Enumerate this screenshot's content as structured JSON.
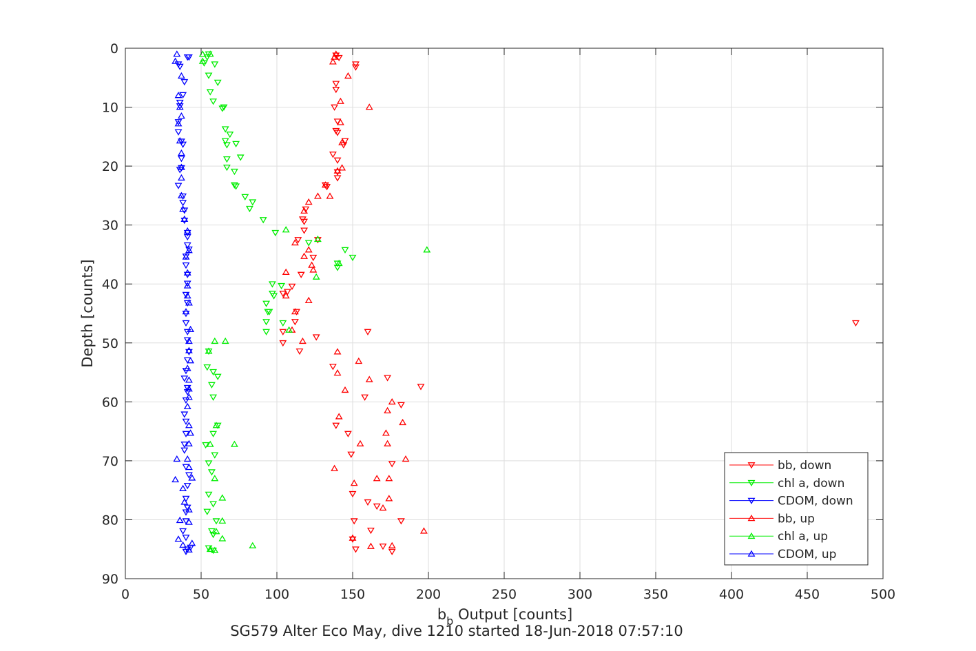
{
  "chart_data": {
    "type": "scatter",
    "title": "",
    "xlabel": {
      "base": "b",
      "subscript": "b",
      "suffix": " Output [counts]"
    },
    "ylabel": "Depth [counts]",
    "caption": "SG579 Alter Eco May, dive 1210 started 18-Jun-2018 07:57:10",
    "xlim": [
      0,
      500
    ],
    "ylim": [
      0,
      90
    ],
    "y_reversed": true,
    "grid": true,
    "xticks": [
      "0",
      "50",
      "100",
      "150",
      "200",
      "250",
      "300",
      "350",
      "400",
      "450",
      "500"
    ],
    "yticks": [
      "0",
      "10",
      "20",
      "30",
      "40",
      "50",
      "60",
      "70",
      "80",
      "90"
    ],
    "legend_position": "bottom-right",
    "series": [
      {
        "name": "bb, down",
        "color": "#ff0000",
        "marker": "triangle-down",
        "points": [
          [
            139,
            1.2
          ],
          [
            141,
            1.6
          ],
          [
            152,
            2.7
          ],
          [
            152,
            3.2
          ],
          [
            139,
            6.0
          ],
          [
            139,
            7.0
          ],
          [
            138,
            10.0
          ],
          [
            140,
            12.4
          ],
          [
            139,
            14.0
          ],
          [
            140,
            14.3
          ],
          [
            145,
            15.7
          ],
          [
            144,
            16.4
          ],
          [
            137,
            18.0
          ],
          [
            140,
            19.0
          ],
          [
            140,
            21.0
          ],
          [
            140,
            22.0
          ],
          [
            132,
            23.2
          ],
          [
            133,
            23.5
          ],
          [
            119,
            27.3
          ],
          [
            117,
            29.0
          ],
          [
            118,
            29.4
          ],
          [
            118,
            30.9
          ],
          [
            114,
            32.5
          ],
          [
            127,
            32.5
          ],
          [
            124,
            35.5
          ],
          [
            116,
            38.4
          ],
          [
            110,
            40.4
          ],
          [
            107,
            41.3
          ],
          [
            104,
            41.6
          ],
          [
            113,
            44.7
          ],
          [
            112,
            46.4
          ],
          [
            104,
            48.1
          ],
          [
            160,
            48.1
          ],
          [
            126,
            49.0
          ],
          [
            104,
            50.0
          ],
          [
            115,
            51.4
          ],
          [
            137,
            54.0
          ],
          [
            173,
            55.9
          ],
          [
            195,
            57.4
          ],
          [
            182,
            60.5
          ],
          [
            158,
            59.2
          ],
          [
            139,
            64.0
          ],
          [
            147,
            65.4
          ],
          [
            149,
            68.9
          ],
          [
            176,
            70.5
          ],
          [
            150,
            75.6
          ],
          [
            160,
            77.0
          ],
          [
            166,
            77.7
          ],
          [
            182,
            80.2
          ],
          [
            151,
            80.2
          ],
          [
            162,
            81.8
          ],
          [
            150,
            83.3
          ],
          [
            152,
            85.0
          ],
          [
            170,
            84.5
          ],
          [
            176,
            85.4
          ],
          [
            482,
            46.6
          ]
        ]
      },
      {
        "name": "chl a, down",
        "color": "#00ee00",
        "marker": "triangle-down",
        "points": [
          [
            55,
            1.0
          ],
          [
            54,
            1.5
          ],
          [
            52,
            2.5
          ],
          [
            59,
            2.7
          ],
          [
            55,
            4.6
          ],
          [
            61,
            5.8
          ],
          [
            56,
            7.4
          ],
          [
            58,
            9.0
          ],
          [
            64,
            10.2
          ],
          [
            65,
            10.0
          ],
          [
            66,
            13.7
          ],
          [
            69,
            14.6
          ],
          [
            66,
            15.7
          ],
          [
            67,
            16.4
          ],
          [
            73,
            16.2
          ],
          [
            76,
            18.5
          ],
          [
            67,
            18.8
          ],
          [
            67,
            20.2
          ],
          [
            72,
            20.9
          ],
          [
            72,
            23.2
          ],
          [
            73,
            23.4
          ],
          [
            79,
            25.2
          ],
          [
            82,
            27.2
          ],
          [
            84,
            26.1
          ],
          [
            91,
            29.1
          ],
          [
            99,
            31.3
          ],
          [
            121,
            33.0
          ],
          [
            145,
            34.2
          ],
          [
            150,
            35.5
          ],
          [
            140,
            36.5
          ],
          [
            140,
            37.2
          ],
          [
            97,
            40.0
          ],
          [
            103,
            40.3
          ],
          [
            97,
            41.6
          ],
          [
            98,
            42.0
          ],
          [
            93,
            43.3
          ],
          [
            95,
            44.7
          ],
          [
            94,
            44.7
          ],
          [
            93,
            46.4
          ],
          [
            104,
            46.6
          ],
          [
            93,
            48.1
          ],
          [
            55,
            51.4
          ],
          [
            54,
            54.1
          ],
          [
            58,
            54.9
          ],
          [
            61,
            55.7
          ],
          [
            57,
            57.1
          ],
          [
            58,
            59.2
          ],
          [
            61,
            64.0
          ],
          [
            58,
            65.4
          ],
          [
            53,
            67.3
          ],
          [
            59,
            69.0
          ],
          [
            55,
            70.4
          ],
          [
            57,
            71.9
          ],
          [
            55,
            75.7
          ],
          [
            58,
            77.3
          ],
          [
            54,
            78.6
          ],
          [
            60,
            80.2
          ],
          [
            57,
            81.9
          ],
          [
            58,
            82.5
          ],
          [
            58,
            85.2
          ],
          [
            55,
            84.8
          ]
        ]
      },
      {
        "name": "CDOM, down",
        "color": "#0000ff",
        "marker": "triangle-down",
        "points": [
          [
            42,
            1.5
          ],
          [
            41,
            1.5
          ],
          [
            35,
            2.7
          ],
          [
            36,
            3.1
          ],
          [
            39,
            5.7
          ],
          [
            38,
            7.9
          ],
          [
            36,
            9.2
          ],
          [
            36,
            9.8
          ],
          [
            35,
            12.5
          ],
          [
            35,
            14.2
          ],
          [
            37,
            15.8
          ],
          [
            38,
            16.3
          ],
          [
            37,
            18.7
          ],
          [
            36,
            20.6
          ],
          [
            37,
            20.3
          ],
          [
            35,
            23.3
          ],
          [
            38,
            25.1
          ],
          [
            38,
            26.2
          ],
          [
            39,
            27.5
          ],
          [
            39,
            29.2
          ],
          [
            41,
            31.3
          ],
          [
            41,
            32.0
          ],
          [
            41,
            33.4
          ],
          [
            42,
            34.1
          ],
          [
            40,
            35.3
          ],
          [
            40,
            36.8
          ],
          [
            41,
            38.4
          ],
          [
            41,
            39.9
          ],
          [
            40,
            41.8
          ],
          [
            41,
            43.2
          ],
          [
            40,
            45.0
          ],
          [
            40,
            46.6
          ],
          [
            41,
            48.1
          ],
          [
            41,
            49.5
          ],
          [
            42,
            51.5
          ],
          [
            41,
            52.9
          ],
          [
            40,
            54.7
          ],
          [
            39,
            56.0
          ],
          [
            41,
            57.6
          ],
          [
            41,
            58.3
          ],
          [
            40,
            59.7
          ],
          [
            39,
            62.1
          ],
          [
            40,
            63.3
          ],
          [
            40,
            65.4
          ],
          [
            39,
            67.2
          ],
          [
            39,
            68.2
          ],
          [
            40,
            71.0
          ],
          [
            42,
            72.4
          ],
          [
            41,
            74.2
          ],
          [
            40,
            76.4
          ],
          [
            41,
            77.9
          ],
          [
            40,
            78.7
          ],
          [
            40,
            80.2
          ],
          [
            38,
            81.9
          ],
          [
            40,
            83.0
          ],
          [
            43,
            84.7
          ],
          [
            40,
            85.4
          ],
          [
            41,
            85.0
          ]
        ]
      },
      {
        "name": "bb, up",
        "color": "#ff0000",
        "marker": "triangle-up",
        "points": [
          [
            139,
            1.0
          ],
          [
            138,
            1.5
          ],
          [
            137,
            2.3
          ],
          [
            147,
            4.7
          ],
          [
            142,
            9.0
          ],
          [
            161,
            10.0
          ],
          [
            142,
            12.6
          ],
          [
            143,
            16.0
          ],
          [
            143,
            20.3
          ],
          [
            140,
            20.8
          ],
          [
            132,
            23.2
          ],
          [
            135,
            25.1
          ],
          [
            127,
            25.1
          ],
          [
            121,
            26.1
          ],
          [
            118,
            27.6
          ],
          [
            112,
            33.0
          ],
          [
            121,
            34.2
          ],
          [
            118,
            35.3
          ],
          [
            123,
            36.8
          ],
          [
            124,
            37.6
          ],
          [
            106,
            38.0
          ],
          [
            106,
            42.0
          ],
          [
            121,
            42.8
          ],
          [
            112,
            44.7
          ],
          [
            110,
            47.8
          ],
          [
            117,
            49.7
          ],
          [
            140,
            51.5
          ],
          [
            154,
            53.1
          ],
          [
            140,
            55.1
          ],
          [
            161,
            56.2
          ],
          [
            145,
            58.0
          ],
          [
            176,
            60.0
          ],
          [
            173,
            61.5
          ],
          [
            141,
            62.5
          ],
          [
            183,
            63.5
          ],
          [
            172,
            65.3
          ],
          [
            155,
            67.1
          ],
          [
            173,
            67.1
          ],
          [
            185,
            69.7
          ],
          [
            138,
            71.3
          ],
          [
            166,
            73.0
          ],
          [
            174,
            73.0
          ],
          [
            151,
            73.8
          ],
          [
            174,
            76.4
          ],
          [
            170,
            78.0
          ],
          [
            150,
            83.1
          ],
          [
            197,
            81.9
          ],
          [
            176,
            84.4
          ],
          [
            162,
            84.5
          ]
        ]
      },
      {
        "name": "chl a, up",
        "color": "#00ee00",
        "marker": "triangle-up",
        "points": [
          [
            51,
            1.0
          ],
          [
            56,
            1.0
          ],
          [
            51,
            2.2
          ],
          [
            106,
            30.8
          ],
          [
            127,
            32.4
          ],
          [
            199,
            34.2
          ],
          [
            141,
            36.5
          ],
          [
            126,
            38.8
          ],
          [
            108,
            47.8
          ],
          [
            66,
            49.7
          ],
          [
            59,
            49.7
          ],
          [
            55,
            51.4
          ],
          [
            60,
            64.0
          ],
          [
            56,
            67.2
          ],
          [
            72,
            67.2
          ],
          [
            59,
            73.0
          ],
          [
            64,
            76.3
          ],
          [
            64,
            80.2
          ],
          [
            60,
            82.0
          ],
          [
            64,
            83.2
          ],
          [
            84,
            84.4
          ],
          [
            56,
            85.0
          ],
          [
            59,
            85.2
          ]
        ]
      },
      {
        "name": "CDOM, up",
        "color": "#0000ff",
        "marker": "triangle-up",
        "points": [
          [
            34,
            1.0
          ],
          [
            33,
            2.2
          ],
          [
            37,
            4.7
          ],
          [
            35,
            8.0
          ],
          [
            36,
            10.0
          ],
          [
            37,
            11.5
          ],
          [
            35,
            12.8
          ],
          [
            36,
            15.7
          ],
          [
            37,
            17.8
          ],
          [
            37,
            20.2
          ],
          [
            37,
            22.0
          ],
          [
            37,
            25.0
          ],
          [
            38,
            27.3
          ],
          [
            39,
            29.0
          ],
          [
            41,
            31.0
          ],
          [
            42,
            34.3
          ],
          [
            40,
            35.4
          ],
          [
            41,
            38.1
          ],
          [
            41,
            40.3
          ],
          [
            41,
            42.0
          ],
          [
            42,
            43.2
          ],
          [
            40,
            44.7
          ],
          [
            43,
            47.7
          ],
          [
            42,
            49.7
          ],
          [
            42,
            51.3
          ],
          [
            43,
            53.0
          ],
          [
            41,
            54.3
          ],
          [
            42,
            56.3
          ],
          [
            42,
            57.8
          ],
          [
            42,
            59.2
          ],
          [
            41,
            60.8
          ],
          [
            42,
            64.0
          ],
          [
            43,
            65.3
          ],
          [
            42,
            67.1
          ],
          [
            34,
            69.7
          ],
          [
            41,
            69.7
          ],
          [
            42,
            71.1
          ],
          [
            44,
            72.9
          ],
          [
            33,
            73.2
          ],
          [
            38,
            74.7
          ],
          [
            39,
            77.0
          ],
          [
            42,
            78.3
          ],
          [
            42,
            80.4
          ],
          [
            36,
            80.1
          ],
          [
            35,
            83.3
          ],
          [
            44,
            84.0
          ],
          [
            38,
            84.3
          ],
          [
            42,
            85.1
          ]
        ]
      }
    ]
  }
}
